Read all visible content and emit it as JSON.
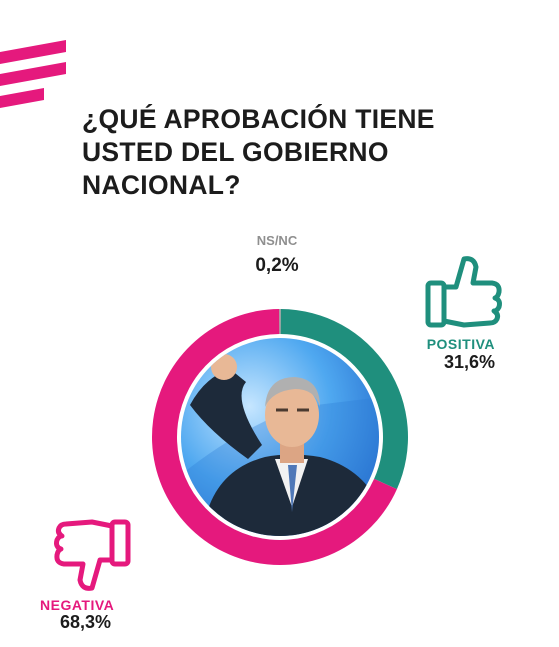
{
  "title_lines": [
    "¿QUÉ APROBACIÓN TIENE",
    "USTED DEL GOBIERNO",
    "NACIONAL?"
  ],
  "colors": {
    "positive": "#1f8f7d",
    "negative": "#e5197d",
    "nsnc": "#9a9a9a",
    "brand": "#e5197d"
  },
  "icons": {
    "positive": "thumbs-up-icon",
    "negative": "thumbs-down-icon",
    "center": "politician-photo"
  },
  "chart_data": {
    "type": "pie",
    "style": "donut",
    "title": "¿QUÉ APROBACIÓN TIENE USTED DEL GOBIERNO NACIONAL?",
    "slices": [
      {
        "label": "POSITIVA",
        "value": 31.6,
        "display": "31,6%"
      },
      {
        "label": "NEGATIVA",
        "value": 68.3,
        "display": "68,3%"
      },
      {
        "label": "NS/NC",
        "value": 0.2,
        "display": "0,2%"
      }
    ]
  }
}
